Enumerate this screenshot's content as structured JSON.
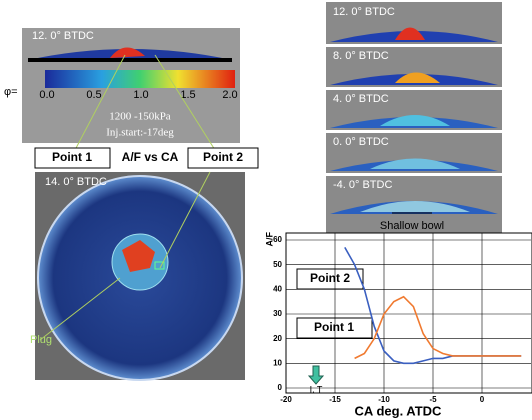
{
  "left_top": {
    "title": "12. 0° BTDC",
    "phi_label": "φ=",
    "scale_ticks": [
      "0.0",
      "0.5",
      "1.0",
      "1.5",
      "2.0"
    ],
    "line1": "1200 -150kPa",
    "line2": "Inj.start:-17deg"
  },
  "labels": {
    "point1": "Point 1",
    "title": "A/F vs CA",
    "point2": "Point 2"
  },
  "left_bottom": {
    "title": "14. 0° BTDC",
    "plug": "Plug"
  },
  "right_stack": {
    "panels": [
      "12. 0° BTDC",
      "8. 0° BTDC",
      "4. 0° BTDC",
      "0. 0° BTDC",
      "-4. 0° BTDC"
    ],
    "bowl": "Shallow bowl"
  },
  "chart_data": {
    "type": "line",
    "ylabel": "A/F",
    "xlabel": "CA deg. ATDC",
    "annotations": [
      "Point 2",
      "Point 1",
      "I. T"
    ],
    "x": [
      -14,
      -13,
      -12,
      -11,
      -10,
      -9,
      -8,
      -7,
      -6,
      -5,
      -4,
      -3,
      -2,
      -1,
      0,
      1,
      2,
      3,
      4
    ],
    "series": [
      {
        "name": "Point 2",
        "color": "#3a5fc0",
        "values": [
          57,
          50,
          40,
          25,
          15,
          11,
          10,
          10,
          11,
          12,
          12,
          13,
          13,
          13,
          13,
          13,
          13,
          13,
          13
        ]
      },
      {
        "name": "Point 1",
        "color": "#f07a30",
        "values": [
          null,
          12,
          14,
          20,
          30,
          35,
          37,
          33,
          22,
          16,
          14,
          13,
          13,
          13,
          13,
          13,
          13,
          13,
          13
        ]
      }
    ],
    "xlim": [
      -20,
      5
    ],
    "ylim": [
      0,
      60
    ],
    "xticks": [
      -20,
      -15,
      -10,
      -5,
      0
    ],
    "yticks": [
      0,
      10,
      20,
      30,
      40,
      50,
      60
    ],
    "grid": true
  }
}
